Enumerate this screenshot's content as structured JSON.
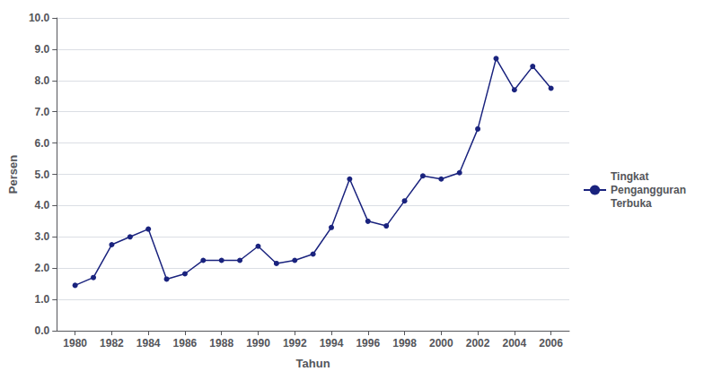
{
  "chart_data": {
    "type": "line",
    "x": [
      1980,
      1981,
      1982,
      1983,
      1984,
      1985,
      1986,
      1987,
      1988,
      1989,
      1990,
      1991,
      1992,
      1993,
      1994,
      1995,
      1996,
      1997,
      1998,
      1999,
      2000,
      2001,
      2002,
      2003,
      2004,
      2005,
      2006
    ],
    "series": [
      {
        "name": "Tingkat\nPengangguran\nTerbuka",
        "color": "#1a237e",
        "marker": "circle",
        "values": [
          1.45,
          1.7,
          2.75,
          3.0,
          3.25,
          1.65,
          1.82,
          2.25,
          2.25,
          2.25,
          2.7,
          2.15,
          2.25,
          2.45,
          3.3,
          4.85,
          3.5,
          3.35,
          4.15,
          4.95,
          4.85,
          5.05,
          6.45,
          8.7,
          7.7,
          8.45,
          7.75
        ]
      }
    ],
    "xlabel": "Tahun",
    "ylabel": "Persen",
    "xlim": [
      1979,
      2007
    ],
    "xticks": [
      1980,
      1982,
      1984,
      1986,
      1988,
      1990,
      1992,
      1994,
      1996,
      1998,
      2000,
      2002,
      2004,
      2006
    ],
    "ylim": [
      0,
      10
    ],
    "yticks": [
      {
        "value": 0,
        "label": "0.0"
      },
      {
        "value": 1,
        "label": "1.0"
      },
      {
        "value": 2,
        "label": "2.0"
      },
      {
        "value": 3,
        "label": "3.0"
      },
      {
        "value": 4,
        "label": "4.0"
      },
      {
        "value": 5,
        "label": "5.0"
      },
      {
        "value": 6,
        "label": "6.0"
      },
      {
        "value": 7,
        "label": "7.0"
      },
      {
        "value": 8,
        "label": "8.0"
      },
      {
        "value": 9,
        "label": "9.0"
      },
      {
        "value": 10,
        "label": "10.0"
      }
    ],
    "grid": true,
    "legend": "right"
  }
}
